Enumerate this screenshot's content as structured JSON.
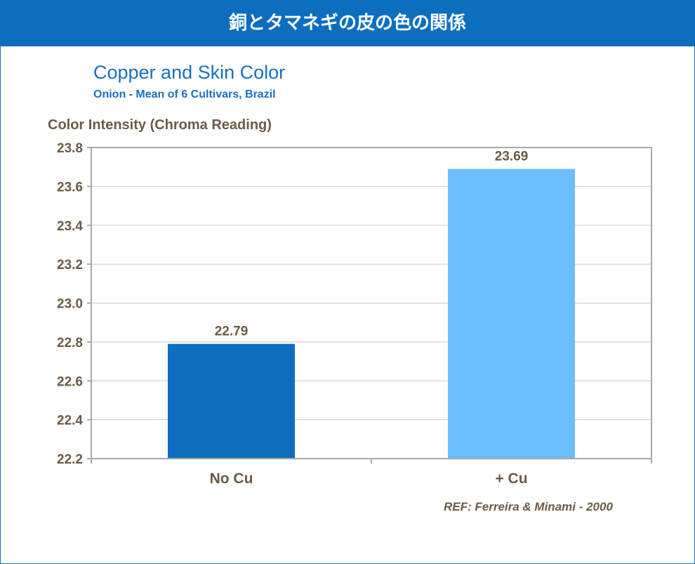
{
  "banner": {
    "title": "銅とタマネギの皮の色の関係"
  },
  "chart_data": {
    "type": "bar",
    "title": "Copper and Skin Color",
    "subtitle": "Onion - Mean of 6 Cultivars, Brazil",
    "xlabel": "",
    "ylabel": "Color Intensity (Chroma Reading)",
    "ylim": [
      22.2,
      23.8
    ],
    "yticks": [
      22.2,
      22.4,
      22.6,
      22.8,
      23.0,
      23.2,
      23.4,
      23.6,
      23.8
    ],
    "ytick_labels": [
      "22.2",
      "22.4",
      "22.6",
      "22.8",
      "23.0",
      "23.2",
      "23.4",
      "23.6",
      "23.8"
    ],
    "categories": [
      "No Cu",
      "+ Cu"
    ],
    "values": [
      22.79,
      23.69
    ],
    "value_labels": [
      "22.79",
      "23.69"
    ],
    "colors": [
      "#0d6ebf",
      "#6bbeff"
    ],
    "grid": true,
    "legend": "none"
  },
  "reference": "REF: Ferreira & Minami - 2000"
}
